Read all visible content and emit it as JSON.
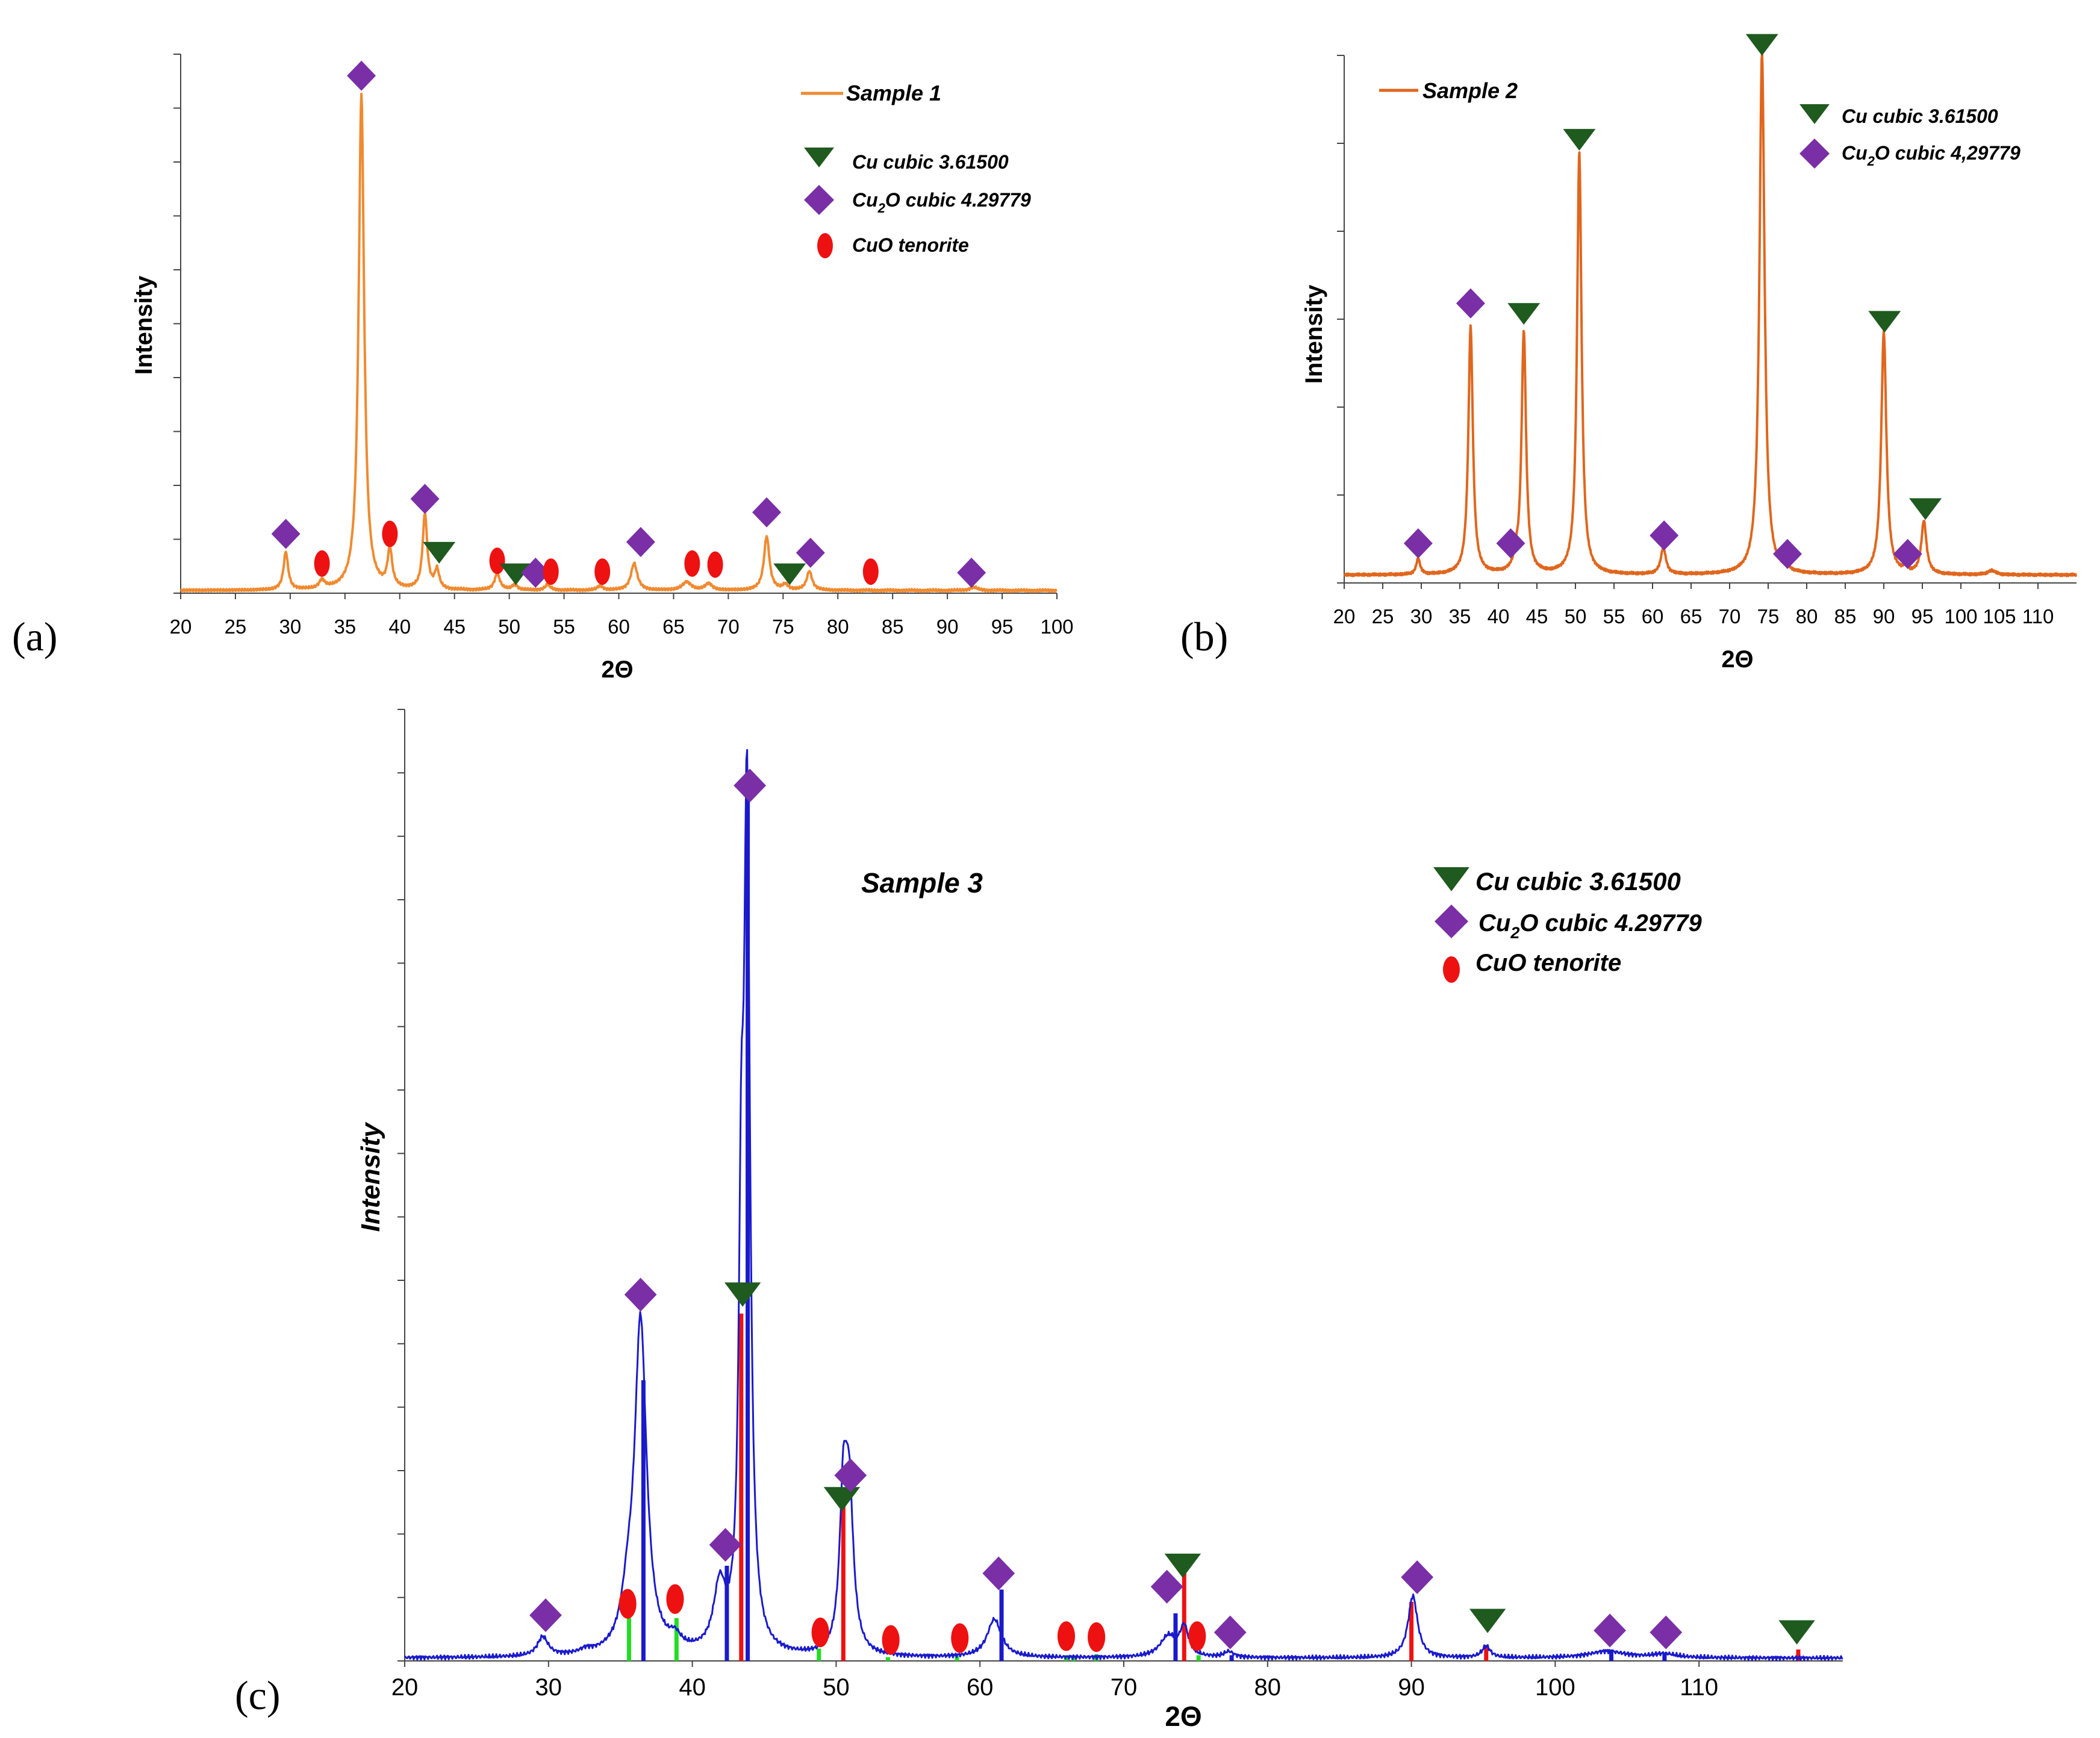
{
  "figure": {
    "colors": {
      "cu_marker": "#1f5a1f",
      "cu2o_marker": "#7a2fa6",
      "cuo_marker": "#ee1111",
      "orange_a": "#f08a30",
      "orange_b": "#e0661c",
      "blue_c": "#1a1acc",
      "stick_green": "#22dd22",
      "stick_red": "#ee1111",
      "stick_blue": "#1a1acc"
    }
  },
  "chart_data": [
    {
      "id": "a",
      "type": "line",
      "panel_label": "(a)",
      "xlabel": "2Θ",
      "ylabel": "Intensity",
      "xlim": [
        20,
        100
      ],
      "ylim": [
        0,
        100
      ],
      "xticks": [
        20,
        25,
        30,
        35,
        40,
        45,
        50,
        55,
        60,
        65,
        70,
        75,
        80,
        85,
        90,
        95,
        100
      ],
      "y_minor_ticks": 10,
      "legend": {
        "line_label": "Sample 1",
        "cu": "Cu cubic 3.61500",
        "cu2o_pre": "Cu",
        "cu2o_sub": "2",
        "cu2o_post": "O cubic 4.29779",
        "cuo": "CuO tenorite"
      },
      "background": 0.5,
      "peaks": [
        {
          "x": 29.6,
          "h": 7,
          "w": 0.25
        },
        {
          "x": 32.9,
          "h": 1.5,
          "w": 0.3
        },
        {
          "x": 36.5,
          "h": 92,
          "w": 0.3
        },
        {
          "x": 39.1,
          "h": 7,
          "w": 0.25
        },
        {
          "x": 42.3,
          "h": 14,
          "w": 0.25
        },
        {
          "x": 43.4,
          "h": 3.5,
          "w": 0.25
        },
        {
          "x": 48.9,
          "h": 3,
          "w": 0.3
        },
        {
          "x": 50.5,
          "h": 1,
          "w": 0.3
        },
        {
          "x": 53.5,
          "h": 1,
          "w": 0.3
        },
        {
          "x": 58.3,
          "h": 0.8,
          "w": 0.3
        },
        {
          "x": 61.4,
          "h": 5,
          "w": 0.35
        },
        {
          "x": 66.2,
          "h": 1.5,
          "w": 0.5
        },
        {
          "x": 68.2,
          "h": 1.2,
          "w": 0.4
        },
        {
          "x": 73.5,
          "h": 10,
          "w": 0.3
        },
        {
          "x": 75.2,
          "h": 1,
          "w": 0.3
        },
        {
          "x": 77.4,
          "h": 3.5,
          "w": 0.3
        },
        {
          "x": 92.4,
          "h": 0.6,
          "w": 0.4
        }
      ],
      "markers": [
        {
          "type": "cu2o",
          "x": 29.6,
          "y": 11
        },
        {
          "type": "cuo",
          "x": 32.9,
          "y": 5.5
        },
        {
          "type": "cu2o",
          "x": 36.5,
          "y": 96
        },
        {
          "type": "cuo",
          "x": 39.1,
          "y": 11
        },
        {
          "type": "cu2o",
          "x": 42.3,
          "y": 17.5
        },
        {
          "type": "cu",
          "x": 43.6,
          "y": 7.5
        },
        {
          "type": "cuo",
          "x": 48.9,
          "y": 6
        },
        {
          "type": "cu",
          "x": 50.6,
          "y": 3.5
        },
        {
          "type": "cu2o",
          "x": 52.4,
          "y": 3.8
        },
        {
          "type": "cuo",
          "x": 53.8,
          "y": 4
        },
        {
          "type": "cuo",
          "x": 58.5,
          "y": 4
        },
        {
          "type": "cu2o",
          "x": 62.0,
          "y": 9.5
        },
        {
          "type": "cuo",
          "x": 66.7,
          "y": 5.5
        },
        {
          "type": "cuo",
          "x": 68.8,
          "y": 5.3
        },
        {
          "type": "cu2o",
          "x": 73.5,
          "y": 15
        },
        {
          "type": "cu",
          "x": 75.6,
          "y": 3.5
        },
        {
          "type": "cu2o",
          "x": 77.5,
          "y": 7.5
        },
        {
          "type": "cuo",
          "x": 83.0,
          "y": 4
        },
        {
          "type": "cu2o",
          "x": 92.2,
          "y": 3.8
        }
      ]
    },
    {
      "id": "b",
      "type": "line",
      "panel_label": "(b)",
      "xlabel": "2Θ",
      "ylabel": "Intensity",
      "xlim": [
        20,
        115
      ],
      "ylim": [
        0,
        100
      ],
      "xticks": [
        20,
        25,
        30,
        35,
        40,
        45,
        50,
        55,
        60,
        65,
        70,
        75,
        80,
        85,
        90,
        95,
        100,
        105,
        110
      ],
      "y_minor_ticks": 6,
      "legend": {
        "line_label": "Sample 2",
        "cu": "Cu cubic 3.61500",
        "cu2o_pre": "Cu",
        "cu2o_sub": "2",
        "cu2o_post": "O cubic 4,29779"
      },
      "background": 1.5,
      "peaks": [
        {
          "x": 29.6,
          "h": 3,
          "w": 0.3
        },
        {
          "x": 36.4,
          "h": 47,
          "w": 0.35
        },
        {
          "x": 42.3,
          "h": 2,
          "w": 0.3
        },
        {
          "x": 43.3,
          "h": 46,
          "w": 0.35
        },
        {
          "x": 50.5,
          "h": 80,
          "w": 0.35
        },
        {
          "x": 61.4,
          "h": 5,
          "w": 0.4
        },
        {
          "x": 74.2,
          "h": 99,
          "w": 0.4
        },
        {
          "x": 77.4,
          "h": 1,
          "w": 0.3
        },
        {
          "x": 90.0,
          "h": 46,
          "w": 0.4
        },
        {
          "x": 92.8,
          "h": 1,
          "w": 0.3
        },
        {
          "x": 95.2,
          "h": 10,
          "w": 0.4
        },
        {
          "x": 104.0,
          "h": 0.8,
          "w": 0.6
        }
      ],
      "markers": [
        {
          "type": "cu2o",
          "x": 29.6,
          "y": 7.5
        },
        {
          "type": "cu2o",
          "x": 36.4,
          "y": 53
        },
        {
          "type": "cu2o",
          "x": 41.6,
          "y": 7.5
        },
        {
          "type": "cu",
          "x": 43.3,
          "y": 51
        },
        {
          "type": "cu",
          "x": 50.5,
          "y": 84
        },
        {
          "type": "cu2o",
          "x": 61.5,
          "y": 9
        },
        {
          "type": "cu",
          "x": 74.2,
          "y": 102
        },
        {
          "type": "cu2o",
          "x": 77.5,
          "y": 5.5
        },
        {
          "type": "cu",
          "x": 90.1,
          "y": 49.5
        },
        {
          "type": "cu2o",
          "x": 93.1,
          "y": 5.5
        },
        {
          "type": "cu",
          "x": 95.4,
          "y": 14
        }
      ]
    },
    {
      "id": "c",
      "type": "line",
      "panel_label": "(c)",
      "title": "Sample 3",
      "xlabel": "2Θ",
      "ylabel": "Intensity",
      "xlim": [
        20,
        120
      ],
      "ylim": [
        0,
        100
      ],
      "xticks": [
        20,
        30,
        40,
        50,
        60,
        70,
        80,
        90,
        100,
        110
      ],
      "y_minor_ticks": 15,
      "legend": {
        "cu": "Cu cubic 3.61500",
        "cu2o_pre": "Cu",
        "cu2o_sub": "2",
        "cu2o_post": "O cubic 4.29779",
        "cuo": "CuO tenorite"
      },
      "background": 0.3,
      "peaks": [
        {
          "x": 29.6,
          "h": 2,
          "w": 0.45
        },
        {
          "x": 32.6,
          "h": 0.4,
          "w": 0.5
        },
        {
          "x": 35.5,
          "h": 4,
          "w": 0.5
        },
        {
          "x": 36.4,
          "h": 35,
          "w": 0.5
        },
        {
          "x": 38.8,
          "h": 1.2,
          "w": 0.5
        },
        {
          "x": 41.9,
          "h": 6.5,
          "w": 0.5
        },
        {
          "x": 43.4,
          "h": 37,
          "w": 0.2
        },
        {
          "x": 43.8,
          "h": 88,
          "w": 0.25
        },
        {
          "x": 50.5,
          "h": 15,
          "w": 0.3
        },
        {
          "x": 50.9,
          "h": 16,
          "w": 0.35
        },
        {
          "x": 61.0,
          "h": 4,
          "w": 0.6
        },
        {
          "x": 73.1,
          "h": 2.2,
          "w": 0.7
        },
        {
          "x": 74.2,
          "h": 3,
          "w": 0.35
        },
        {
          "x": 77.3,
          "h": 0.6,
          "w": 0.4
        },
        {
          "x": 90.1,
          "h": 6.5,
          "w": 0.4
        },
        {
          "x": 95.2,
          "h": 1.2,
          "w": 0.35
        },
        {
          "x": 103.6,
          "h": 0.7,
          "w": 1.5
        },
        {
          "x": 107.6,
          "h": 0.4,
          "w": 1.0
        }
      ],
      "sticks": [
        {
          "x": 35.6,
          "h": 4.5,
          "color": "green"
        },
        {
          "x": 38.9,
          "h": 4.5,
          "color": "green"
        },
        {
          "x": 48.8,
          "h": 1.3,
          "color": "green"
        },
        {
          "x": 53.6,
          "h": 0.4,
          "color": "green"
        },
        {
          "x": 58.4,
          "h": 0.5,
          "color": "green"
        },
        {
          "x": 66.0,
          "h": 0.6,
          "color": "green"
        },
        {
          "x": 66.5,
          "h": 0.5,
          "color": "green"
        },
        {
          "x": 68.1,
          "h": 0.7,
          "color": "green"
        },
        {
          "x": 75.2,
          "h": 0.6,
          "color": "green"
        },
        {
          "x": 36.6,
          "h": 29.5,
          "color": "blue"
        },
        {
          "x": 42.4,
          "h": 10,
          "color": "blue"
        },
        {
          "x": 61.5,
          "h": 7.5,
          "color": "blue"
        },
        {
          "x": 73.6,
          "h": 5,
          "color": "blue"
        },
        {
          "x": 77.5,
          "h": 0.6,
          "color": "blue"
        },
        {
          "x": 103.9,
          "h": 1.2,
          "color": "blue"
        },
        {
          "x": 107.6,
          "h": 0.8,
          "color": "blue"
        },
        {
          "x": 43.85,
          "h": 93,
          "color": "blue"
        },
        {
          "x": 43.4,
          "h": 36.5,
          "color": "red"
        },
        {
          "x": 50.5,
          "h": 16.5,
          "color": "red"
        },
        {
          "x": 74.2,
          "h": 9.5,
          "color": "red"
        },
        {
          "x": 90.0,
          "h": 6.2,
          "color": "red"
        },
        {
          "x": 95.2,
          "h": 1.6,
          "color": "red"
        },
        {
          "x": 116.9,
          "h": 1.2,
          "color": "red"
        }
      ],
      "markers": [
        {
          "type": "cu2o",
          "x": 29.8,
          "y": 4.8
        },
        {
          "type": "cuo",
          "x": 35.5,
          "y": 6
        },
        {
          "type": "cu2o",
          "x": 36.4,
          "y": 38.5
        },
        {
          "type": "cuo",
          "x": 38.8,
          "y": 6.5
        },
        {
          "type": "cu2o",
          "x": 42.3,
          "y": 12.2
        },
        {
          "type": "cu",
          "x": 43.5,
          "y": 38.5
        },
        {
          "type": "cu2o",
          "x": 44.0,
          "y": 92
        },
        {
          "type": "cuo",
          "x": 48.9,
          "y": 3
        },
        {
          "type": "cu",
          "x": 50.4,
          "y": 17
        },
        {
          "type": "cu2o",
          "x": 51.0,
          "y": 19.5
        },
        {
          "type": "cuo",
          "x": 53.8,
          "y": 2.2
        },
        {
          "type": "cuo",
          "x": 58.6,
          "y": 2.4
        },
        {
          "type": "cu2o",
          "x": 61.3,
          "y": 9.2
        },
        {
          "type": "cuo",
          "x": 66.0,
          "y": 2.6
        },
        {
          "type": "cuo",
          "x": 68.1,
          "y": 2.5
        },
        {
          "type": "cu2o",
          "x": 73.0,
          "y": 7.8
        },
        {
          "type": "cu",
          "x": 74.1,
          "y": 10
        },
        {
          "type": "cuo",
          "x": 75.1,
          "y": 2.6
        },
        {
          "type": "cu2o",
          "x": 77.4,
          "y": 3
        },
        {
          "type": "cu2o",
          "x": 90.4,
          "y": 8.8
        },
        {
          "type": "cu",
          "x": 95.3,
          "y": 4.2
        },
        {
          "type": "cu2o",
          "x": 103.8,
          "y": 3.2
        },
        {
          "type": "cu2o",
          "x": 107.7,
          "y": 3
        },
        {
          "type": "cu",
          "x": 116.8,
          "y": 3
        }
      ]
    }
  ]
}
